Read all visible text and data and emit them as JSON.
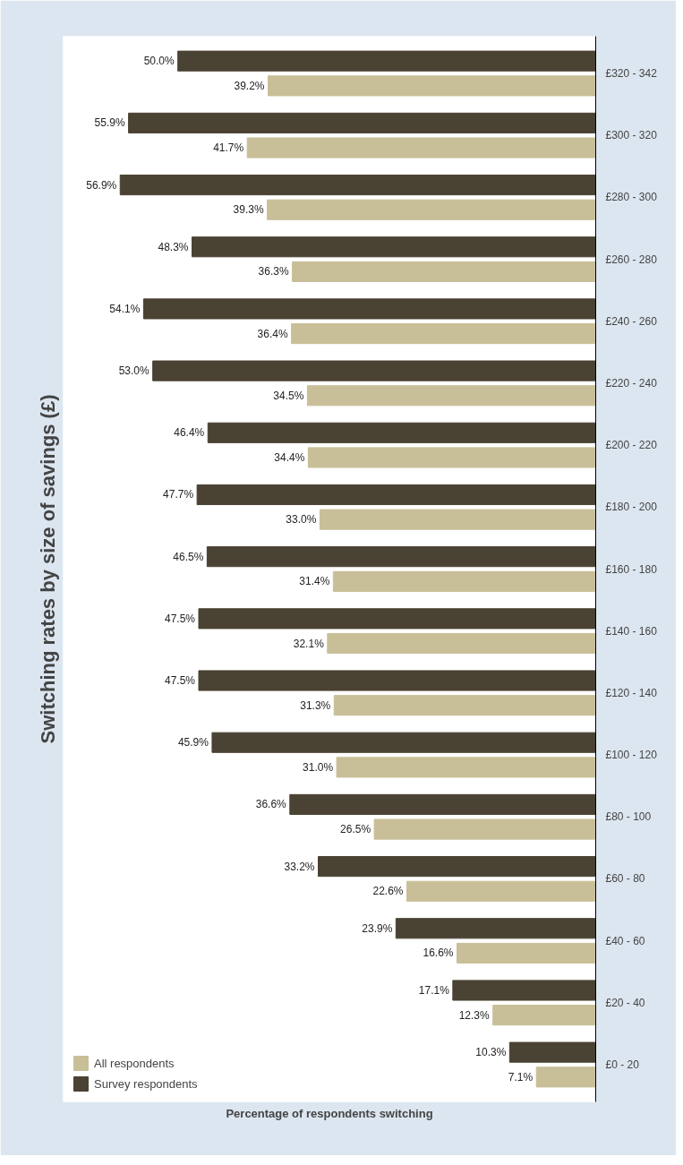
{
  "chart_data": {
    "type": "bar",
    "orientation": "horizontal",
    "title": "Switching rates by size of savings (£)",
    "xlabel": "Percentage of respondents switching",
    "categories": [
      "£320 - 342",
      "£300 - 320",
      "£280 - 300",
      "£260 - 280",
      "£240 - 260",
      "£220 - 240",
      "£200 - 220",
      "£180 - 200",
      "£160 - 180",
      "£140 - 160",
      "£120 - 140",
      "£100 - 120",
      "£80 - 100",
      "£60 - 80",
      "£40 - 60",
      "£20 - 40",
      "£0 - 20"
    ],
    "series": [
      {
        "name": "Survey respondents",
        "color": "#4a4232",
        "values": [
          50.0,
          55.9,
          56.9,
          48.3,
          54.1,
          53.0,
          46.4,
          47.7,
          46.5,
          47.5,
          47.5,
          45.9,
          36.6,
          33.2,
          23.9,
          17.1,
          10.3
        ],
        "value_labels": [
          "50.0%",
          "55.9%",
          "56.9%",
          "48.3%",
          "54.1%",
          "53.0%",
          "46.4%",
          "47.7%",
          "46.5%",
          "47.5%",
          "47.5%",
          "45.9%",
          "36.6%",
          "33.2%",
          "23.9%",
          "17.1%",
          "10.3%"
        ]
      },
      {
        "name": "All respondents",
        "color": "#c8bf98",
        "values": [
          39.2,
          41.7,
          39.3,
          36.3,
          36.4,
          34.5,
          34.4,
          33.0,
          31.4,
          32.1,
          31.3,
          31.0,
          26.5,
          22.6,
          16.6,
          12.3,
          7.1
        ],
        "value_labels": [
          "39.2%",
          "41.7%",
          "39.3%",
          "36.3%",
          "36.4%",
          "34.5%",
          "34.4%",
          "33.0%",
          "31.4%",
          "32.1%",
          "31.3%",
          "31.0%",
          "26.5%",
          "22.6%",
          "16.6%",
          "12.3%",
          "7.1%"
        ]
      }
    ],
    "legend": "bottom left",
    "grid": false
  }
}
